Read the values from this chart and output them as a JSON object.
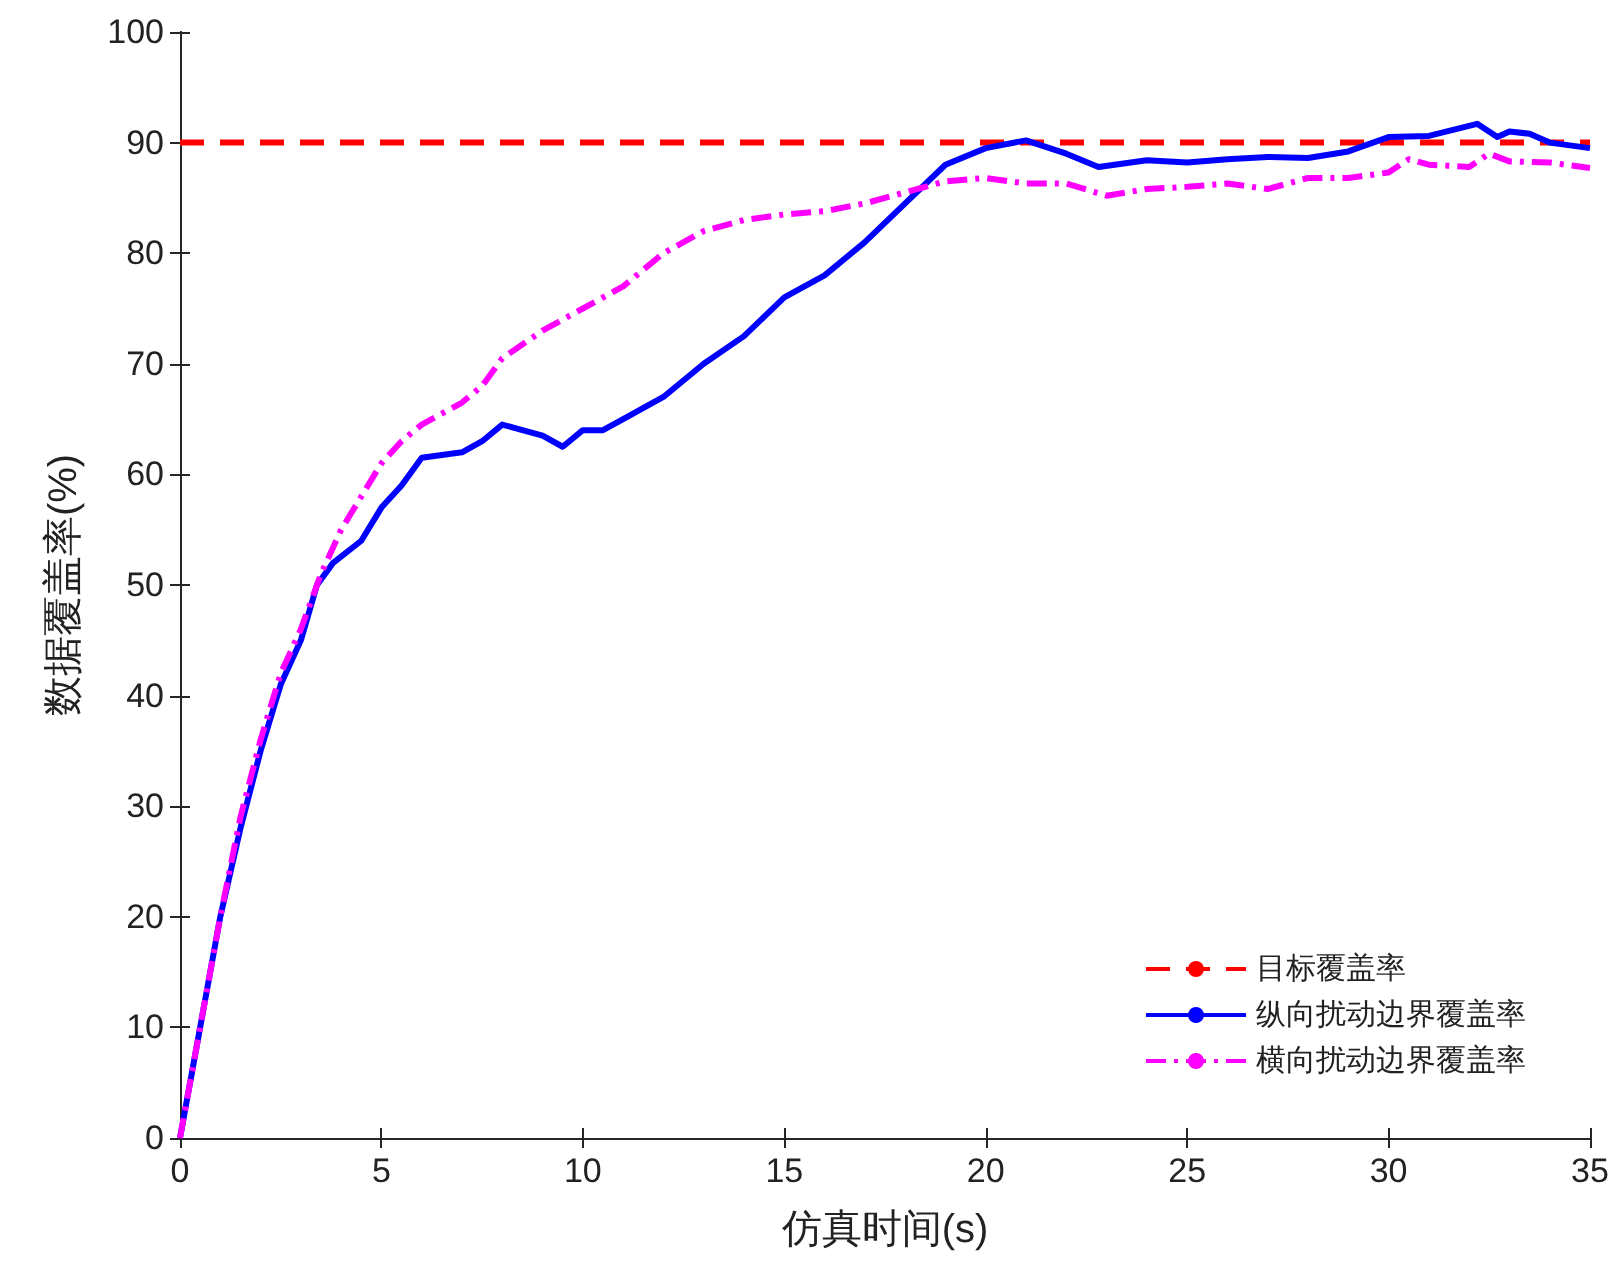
{
  "chart_data": {
    "type": "line",
    "xlabel": "仿真时间(s)",
    "ylabel": "数据覆盖率(%)",
    "xlim": [
      0,
      35
    ],
    "xticks": [
      0,
      5,
      10,
      15,
      20,
      25,
      30,
      35
    ],
    "ylim": [
      0,
      100
    ],
    "yticks": [
      0,
      10,
      20,
      30,
      40,
      50,
      60,
      70,
      80,
      90,
      100
    ],
    "grid": false,
    "legend": "bottom right",
    "marker": "none",
    "series": [
      {
        "name": "目标覆盖率",
        "color": "#ff0000",
        "line_style": "dashed",
        "x": [
          0,
          35
        ],
        "values": [
          90,
          90
        ]
      },
      {
        "name": "纵向扰动边界覆盖率",
        "color": "#0000ff",
        "line_style": "solid",
        "x": [
          0,
          0.5,
          1,
          1.5,
          2,
          2.5,
          3,
          3.4,
          3.8,
          4.5,
          5,
          5.5,
          6,
          7,
          7.5,
          8,
          8.5,
          9,
          9.5,
          10,
          10.5,
          11,
          12,
          13,
          14,
          15,
          16,
          17,
          18,
          19,
          20,
          21,
          22,
          22.8,
          24,
          25,
          26,
          27,
          28,
          29,
          30,
          31,
          32.2,
          32.7,
          33,
          33.5,
          34,
          35
        ],
        "values": [
          0,
          10,
          20,
          28,
          35,
          41,
          45,
          50,
          52,
          54,
          57,
          59,
          61.5,
          62,
          63,
          64.5,
          64,
          63.5,
          62.5,
          64,
          64,
          65,
          67,
          70,
          72.5,
          76,
          78,
          81,
          84.5,
          88,
          89.5,
          90.2,
          89,
          87.8,
          88.4,
          88.2,
          88.5,
          88.7,
          88.6,
          89.2,
          90.5,
          90.6,
          91.7,
          90.5,
          91,
          90.8,
          90,
          89.5
        ]
      },
      {
        "name": "横向扰动边界覆盖率",
        "color": "#ff00ff",
        "line_style": "dashdot",
        "x": [
          0,
          0.5,
          1,
          1.5,
          2,
          2.5,
          3,
          3.5,
          4,
          4.5,
          5,
          5.5,
          6,
          7,
          7.5,
          8,
          9,
          10,
          11,
          12,
          13,
          14,
          15,
          16,
          17,
          18,
          19,
          20,
          21,
          22,
          23,
          24,
          25,
          26,
          27,
          28,
          29,
          30,
          30.5,
          31,
          32,
          32.5,
          33,
          34,
          35
        ],
        "values": [
          0,
          10,
          20,
          29,
          36,
          42,
          46,
          51,
          55,
          58,
          61,
          63,
          64.5,
          66.5,
          68,
          70.5,
          73,
          75,
          77,
          80,
          82,
          83,
          83.5,
          83.8,
          84.5,
          85.5,
          86.5,
          86.8,
          86.3,
          86.3,
          85.2,
          85.8,
          86,
          86.3,
          85.8,
          86.8,
          86.8,
          87.3,
          88.5,
          88,
          87.8,
          89,
          88.3,
          88.2,
          87.7
        ]
      }
    ]
  }
}
